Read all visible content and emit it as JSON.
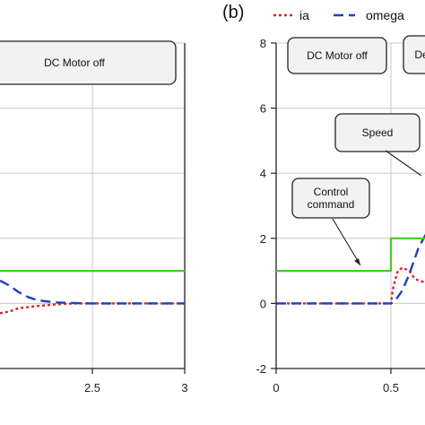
{
  "panel_b_label": "(b)",
  "colors": {
    "ia": "#d62728",
    "omega": "#1f3fbf",
    "control": "#44cc22",
    "grid": "#c8c8c8",
    "axis": "#222222"
  },
  "chart_data": [
    {
      "panel": "left (cropped)",
      "type": "line",
      "xlim": [
        2,
        3
      ],
      "ylim": [
        -2,
        8
      ],
      "xticks": [
        2.5,
        3
      ],
      "xtick_labels": [
        "2.5",
        "3"
      ],
      "grid": true,
      "annotations": [
        {
          "text": "DC Motor off"
        }
      ],
      "series": [
        {
          "name": "ia",
          "style": "dotted",
          "color": "#d62728",
          "x": [
            2.0,
            2.05,
            2.1,
            2.2,
            2.3,
            2.4,
            2.5,
            3.0
          ],
          "y": [
            -0.3,
            -0.25,
            -0.15,
            -0.08,
            -0.03,
            0.0,
            0.0,
            0.0
          ]
        },
        {
          "name": "omega",
          "style": "dashed",
          "color": "#1f3fbf",
          "x": [
            2.0,
            2.05,
            2.1,
            2.15,
            2.2,
            2.3,
            2.4,
            2.5,
            3.0
          ],
          "y": [
            0.7,
            0.55,
            0.35,
            0.2,
            0.1,
            0.03,
            0.01,
            0.0,
            0.0
          ]
        },
        {
          "name": "control command",
          "style": "solid",
          "color": "#44cc22",
          "x": [
            2.0,
            3.0
          ],
          "y": [
            1,
            1
          ]
        }
      ]
    },
    {
      "panel": "(b)",
      "type": "line",
      "xlim": [
        0,
        0.75
      ],
      "ylim": [
        -2,
        8
      ],
      "xticks": [
        0,
        0.5
      ],
      "xtick_labels": [
        "0",
        "0.5"
      ],
      "yticks": [
        -2,
        0,
        2,
        4,
        6,
        8
      ],
      "ytick_labels": [
        "-2",
        "0",
        "2",
        "4",
        "6",
        "8"
      ],
      "grid": true,
      "legend": {
        "placement": "top",
        "entries": [
          "ia",
          "omega"
        ]
      },
      "annotations": [
        {
          "text": "DC Motor off"
        },
        {
          "text": "De"
        },
        {
          "text": "Speed"
        },
        {
          "text": "Control\ncommand"
        }
      ],
      "series": [
        {
          "name": "ia",
          "style": "dotted",
          "color": "#d62728",
          "x": [
            0,
            0.5,
            0.51,
            0.53,
            0.55,
            0.58,
            0.6,
            0.62,
            0.65
          ],
          "y": [
            0,
            0,
            0.5,
            1.0,
            1.1,
            1.0,
            0.8,
            0.7,
            0.65
          ]
        },
        {
          "name": "omega",
          "style": "dashed",
          "color": "#1f3fbf",
          "x": [
            0,
            0.5,
            0.52,
            0.55,
            0.58,
            0.6,
            0.62,
            0.65,
            0.68
          ],
          "y": [
            0,
            0,
            0.1,
            0.4,
            0.9,
            1.3,
            1.7,
            2.1,
            2.4
          ]
        },
        {
          "name": "control command",
          "style": "solid",
          "color": "#44cc22",
          "x": [
            0,
            0.5,
            0.5,
            0.75
          ],
          "y": [
            1,
            1,
            2,
            2
          ]
        }
      ]
    }
  ]
}
